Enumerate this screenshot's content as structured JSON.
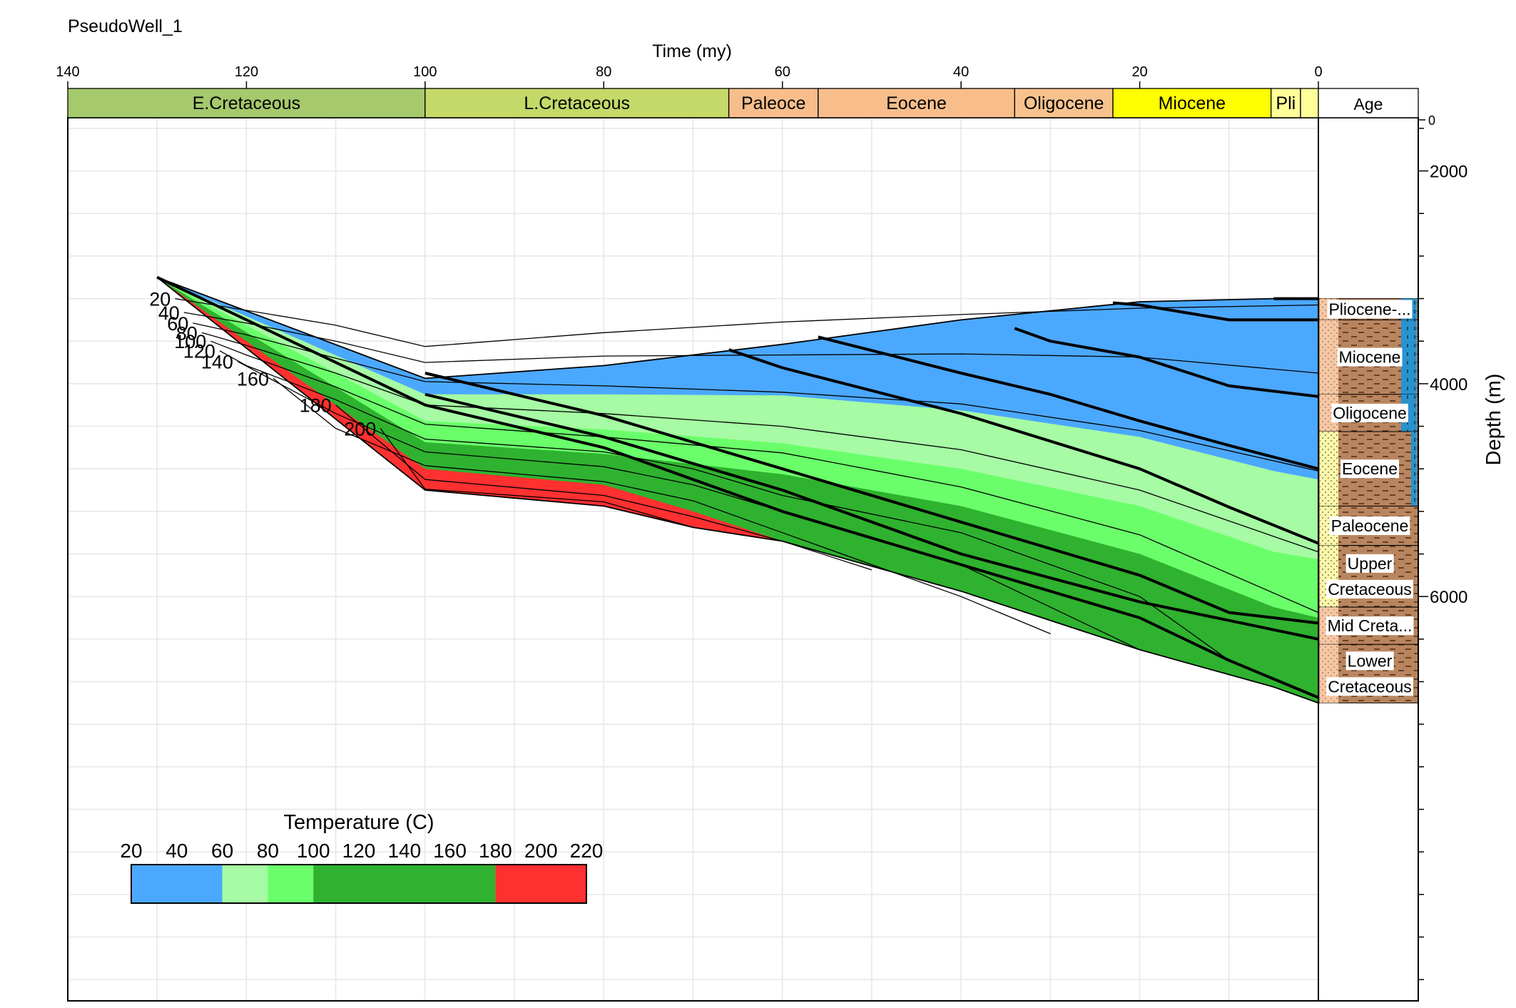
{
  "well_name": "PseudoWell_1",
  "chart_data": {
    "type": "area",
    "xlabel": "Time (my)",
    "ylabel": "Depth (m)",
    "xlim": [
      140,
      0
    ],
    "ylim": [
      1500,
      9800
    ],
    "x_ticks": [
      140,
      120,
      100,
      80,
      60,
      40,
      20,
      0
    ],
    "y_tick_top": 0,
    "y_ticks": [
      2000,
      4000,
      6000
    ],
    "grid": true,
    "ages": [
      {
        "label": "E.Cretaceous",
        "start": 140,
        "end": 100,
        "color": "#a5c96b"
      },
      {
        "label": "L.Cretaceous",
        "start": 100,
        "end": 66,
        "color": "#c4d968"
      },
      {
        "label": "Paleoce",
        "start": 66,
        "end": 56,
        "color": "#f7be8c"
      },
      {
        "label": "Eocene",
        "start": 56,
        "end": 34,
        "color": "#f7be8c"
      },
      {
        "label": "Oligocene",
        "start": 34,
        "end": 23,
        "color": "#f7c28d"
      },
      {
        "label": "Miocene",
        "start": 23,
        "end": 5.3,
        "color": "#ffff00"
      },
      {
        "label": "Pli",
        "start": 5.3,
        "end": 2,
        "color": "#ffff99"
      },
      {
        "label": "",
        "start": 2,
        "end": 0,
        "color": "#ffff99"
      }
    ],
    "age_column_label": "Age",
    "surface": [
      [
        130,
        3000
      ],
      [
        100,
        3950
      ],
      [
        80,
        3830
      ],
      [
        60,
        3630
      ],
      [
        40,
        3400
      ],
      [
        20,
        3230
      ],
      [
        5,
        3200
      ],
      [
        0,
        3200
      ]
    ],
    "basement": [
      [
        130,
        3000
      ],
      [
        100,
        5000
      ],
      [
        80,
        5150
      ],
      [
        70,
        5350
      ],
      [
        60,
        5480
      ],
      [
        40,
        5950
      ],
      [
        20,
        6500
      ],
      [
        5,
        6850
      ],
      [
        0,
        7000
      ]
    ],
    "temperature_bands": [
      {
        "min": 20,
        "max": 60,
        "color": "#4ba8ff",
        "lower": [
          [
            130,
            3000
          ],
          [
            100,
            4100
          ],
          [
            80,
            4100
          ],
          [
            60,
            4110
          ],
          [
            40,
            4250
          ],
          [
            20,
            4500
          ],
          [
            5,
            4820
          ],
          [
            0,
            4900
          ]
        ]
      },
      {
        "min": 60,
        "max": 80,
        "color": "#a6fba4",
        "lower": [
          [
            130,
            3000
          ],
          [
            100,
            4350
          ],
          [
            80,
            4430
          ],
          [
            60,
            4560
          ],
          [
            40,
            4800
          ],
          [
            20,
            5150
          ],
          [
            5,
            5580
          ],
          [
            0,
            5650
          ]
        ]
      },
      {
        "min": 80,
        "max": 100,
        "color": "#6aff6a",
        "lower": [
          [
            130,
            3000
          ],
          [
            100,
            4550
          ],
          [
            80,
            4660
          ],
          [
            60,
            4850
          ],
          [
            40,
            5150
          ],
          [
            20,
            5600
          ],
          [
            5,
            6100
          ],
          [
            0,
            6200
          ]
        ]
      },
      {
        "min": 100,
        "max": 180,
        "color": "#2fb22f",
        "lower": [
          [
            130,
            3000
          ],
          [
            100,
            4800
          ],
          [
            80,
            4950
          ],
          [
            70,
            5200
          ],
          [
            60,
            5480
          ],
          [
            40,
            5950
          ],
          [
            20,
            6500
          ],
          [
            5,
            6850
          ],
          [
            0,
            7000
          ]
        ]
      },
      {
        "min": 180,
        "max": 220,
        "color": "#ff3030",
        "lower": [
          [
            130,
            3000
          ],
          [
            100,
            5000
          ],
          [
            80,
            5150
          ],
          [
            70,
            5350
          ],
          [
            60,
            5480
          ],
          [
            40,
            5950
          ],
          [
            20,
            6500
          ],
          [
            5,
            6850
          ],
          [
            0,
            7000
          ]
        ]
      }
    ],
    "burial_lines": [
      {
        "name": "Pliocene-Pleistocene",
        "points": [
          [
            5,
            3200
          ],
          [
            0,
            3200
          ]
        ]
      },
      {
        "name": "Miocene",
        "points": [
          [
            23,
            3240
          ],
          [
            20,
            3260
          ],
          [
            10,
            3400
          ],
          [
            0,
            3400
          ]
        ]
      },
      {
        "name": "Oligocene",
        "points": [
          [
            34,
            3480
          ],
          [
            30,
            3600
          ],
          [
            20,
            3750
          ],
          [
            10,
            4020
          ],
          [
            0,
            4120
          ]
        ]
      },
      {
        "name": "Eocene",
        "points": [
          [
            56,
            3560
          ],
          [
            40,
            3900
          ],
          [
            30,
            4100
          ],
          [
            20,
            4350
          ],
          [
            10,
            4580
          ],
          [
            0,
            4800
          ]
        ]
      },
      {
        "name": "Paleocene",
        "points": [
          [
            66,
            3680
          ],
          [
            60,
            3850
          ],
          [
            40,
            4280
          ],
          [
            20,
            4800
          ],
          [
            10,
            5160
          ],
          [
            0,
            5500
          ]
        ]
      },
      {
        "name": "Upper Cretaceous",
        "points": [
          [
            100,
            3900
          ],
          [
            80,
            4300
          ],
          [
            60,
            4800
          ],
          [
            40,
            5300
          ],
          [
            20,
            5800
          ],
          [
            10,
            6150
          ],
          [
            0,
            6250
          ]
        ]
      },
      {
        "name": "Mid Creta...",
        "points": [
          [
            100,
            4100
          ],
          [
            80,
            4500
          ],
          [
            60,
            5000
          ],
          [
            40,
            5600
          ],
          [
            20,
            6050
          ],
          [
            0,
            6400
          ]
        ]
      },
      {
        "name": "Lower Cretaceous",
        "points": [
          [
            130,
            3000
          ],
          [
            100,
            4200
          ],
          [
            80,
            4600
          ],
          [
            60,
            5200
          ],
          [
            40,
            5700
          ],
          [
            20,
            6200
          ],
          [
            10,
            6600
          ],
          [
            0,
            6950
          ]
        ]
      }
    ],
    "isotherms": [
      {
        "label": "20",
        "points": [
          [
            128,
            3200
          ],
          [
            120,
            3310
          ],
          [
            110,
            3450
          ],
          [
            100,
            3650
          ],
          [
            80,
            3520
          ],
          [
            60,
            3420
          ],
          [
            40,
            3350
          ],
          [
            20,
            3290
          ],
          [
            0,
            3260
          ]
        ]
      },
      {
        "label": "40",
        "points": [
          [
            127,
            3330
          ],
          [
            120,
            3430
          ],
          [
            110,
            3600
          ],
          [
            100,
            3800
          ],
          [
            80,
            3740
          ],
          [
            60,
            3730
          ],
          [
            40,
            3720
          ],
          [
            20,
            3750
          ],
          [
            0,
            3900
          ]
        ]
      },
      {
        "label": "60",
        "points": [
          [
            126,
            3430
          ],
          [
            120,
            3540
          ],
          [
            110,
            3760
          ],
          [
            100,
            3980
          ],
          [
            80,
            4020
          ],
          [
            60,
            4080
          ],
          [
            40,
            4190
          ],
          [
            20,
            4440
          ],
          [
            0,
            4820
          ]
        ]
      },
      {
        "label": "80",
        "points": [
          [
            125,
            3520
          ],
          [
            120,
            3640
          ],
          [
            110,
            3900
          ],
          [
            100,
            4200
          ],
          [
            80,
            4280
          ],
          [
            60,
            4400
          ],
          [
            40,
            4620
          ],
          [
            20,
            5000
          ],
          [
            0,
            5580
          ]
        ]
      },
      {
        "label": "100",
        "points": [
          [
            124,
            3600
          ],
          [
            120,
            3730
          ],
          [
            110,
            4030
          ],
          [
            100,
            4380
          ],
          [
            80,
            4500
          ],
          [
            60,
            4650
          ],
          [
            40,
            4970
          ],
          [
            20,
            5420
          ],
          [
            0,
            6150
          ]
        ]
      },
      {
        "label": "120",
        "points": [
          [
            123,
            3690
          ],
          [
            120,
            3830
          ],
          [
            110,
            4150
          ],
          [
            100,
            4520
          ],
          [
            80,
            4640
          ],
          [
            70,
            4800
          ],
          [
            60,
            5050
          ],
          [
            40,
            5400
          ],
          [
            20,
            6000
          ],
          [
            10,
            6600
          ]
        ]
      },
      {
        "label": "140",
        "points": [
          [
            121,
            3790
          ],
          [
            110,
            4280
          ],
          [
            100,
            4640
          ],
          [
            80,
            4780
          ],
          [
            70,
            4950
          ],
          [
            60,
            5200
          ],
          [
            40,
            5700
          ],
          [
            30,
            6100
          ],
          [
            20,
            6500
          ]
        ]
      },
      {
        "label": "160",
        "points": [
          [
            117,
            3950
          ],
          [
            110,
            4420
          ],
          [
            100,
            4770
          ],
          [
            80,
            4920
          ],
          [
            70,
            5100
          ],
          [
            60,
            5400
          ],
          [
            40,
            6000
          ],
          [
            30,
            6350
          ]
        ]
      },
      {
        "label": "180",
        "points": [
          [
            110,
            4200
          ],
          [
            100,
            4900
          ],
          [
            80,
            5050
          ],
          [
            70,
            5250
          ],
          [
            60,
            5480
          ],
          [
            50,
            5750
          ]
        ]
      },
      {
        "label": "200",
        "points": [
          [
            105,
            4420
          ],
          [
            100,
            4990
          ],
          [
            80,
            5110
          ],
          [
            70,
            5350
          ]
        ]
      }
    ],
    "lithology_column": [
      {
        "label": "Pliocene-...",
        "top": 3200,
        "base": 3400,
        "pattern": "shale-blue"
      },
      {
        "label": "Miocene",
        "top": 3400,
        "base": 4100,
        "pattern": "shale-blue"
      },
      {
        "label": "Oligocene",
        "top": 4100,
        "base": 4450,
        "pattern": "shale-blue"
      },
      {
        "label": "Eocene",
        "top": 4450,
        "base": 5150,
        "pattern": "sand-shale"
      },
      {
        "label": "Paleocene",
        "top": 5150,
        "base": 5520,
        "pattern": "sand-shale"
      },
      {
        "label": "Upper Cretaceous",
        "top": 5520,
        "base": 6100,
        "pattern": "sand-shale"
      },
      {
        "label": "Mid Creta...",
        "top": 6100,
        "base": 6450,
        "pattern": "shale"
      },
      {
        "label": "Lower Cretaceous",
        "top": 6450,
        "base": 7000,
        "pattern": "shale"
      }
    ],
    "legend": {
      "title": "Temperature (C)",
      "ticks": [
        20,
        40,
        60,
        80,
        100,
        120,
        140,
        160,
        180,
        200,
        220
      ],
      "segments": [
        {
          "from": 20,
          "to": 60,
          "color": "#4ba8ff"
        },
        {
          "from": 60,
          "to": 80,
          "color": "#a6fba4"
        },
        {
          "from": 80,
          "to": 100,
          "color": "#6aff6a"
        },
        {
          "from": 100,
          "to": 180,
          "color": "#2fb22f"
        },
        {
          "from": 180,
          "to": 220,
          "color": "#ff3030"
        }
      ]
    }
  }
}
